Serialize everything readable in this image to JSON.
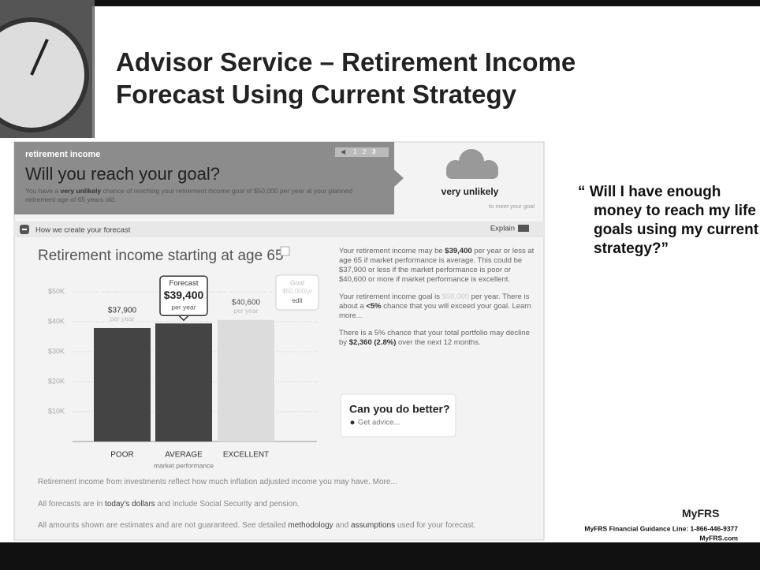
{
  "slide": {
    "title": [
      "Advisor Service – Retirement Income",
      "Forecast Using Current Strategy"
    ],
    "quote": "“ Will I have enough money to reach my life goals using my current strategy?”",
    "footer": {
      "logo": "MyFRS",
      "phone": "MyFRS Financial Guidance Line: 1-866-446-9377",
      "site": "MyFRS.com"
    }
  },
  "header": {
    "label": "retirement income",
    "pager": [
      "1",
      "2",
      "3"
    ],
    "heading": "Will you reach your goal?",
    "summary": [
      "You have a ",
      "very unlikely",
      " chance of reaching your retirement income goal of $50,000 per year at your planned retirement age of 65 years old."
    ],
    "status": "very unlikely",
    "status_note": "to meet your goal"
  },
  "section": {
    "toggle": "How we create your forecast",
    "explain": "Explain"
  },
  "chart_data": {
    "type": "bar",
    "title": "Retirement income starting at age 65",
    "categories": [
      "POOR",
      "AVERAGE",
      "EXCELLENT"
    ],
    "x_label": "market performance",
    "values": [
      37900,
      39400,
      40600
    ],
    "value_labels": [
      "$37,900",
      "$39,400",
      "$40,600"
    ],
    "value_notes": [
      "per year",
      "per year",
      "per year"
    ],
    "highlight_label": "Forecast",
    "colors": [
      "#444444",
      "#444444",
      "#dcdcdc"
    ],
    "goal": {
      "label": "Goal",
      "value_label": "$50,000/yr",
      "action": "edit"
    },
    "ylim": [
      0,
      50000
    ],
    "yticks": [
      {
        "value": 10000,
        "label": "$10K"
      },
      {
        "value": 20000,
        "label": "$20K"
      },
      {
        "value": 30000,
        "label": "$30K"
      },
      {
        "value": 40000,
        "label": "$40K"
      },
      {
        "value": 50000,
        "label": "$50K"
      }
    ],
    "grid": true
  },
  "details": {
    "p1": [
      "Your retirement income may be ",
      "$39,400",
      " per year or less at age 65 if market performance is average. This could be $37,900 or less if the market performance is poor or $40,600 or more if market performance is excellent."
    ],
    "p2": [
      "Your retirement income goal is ",
      "$50,000",
      " per year. There is about a ",
      "<5%",
      " chance that you will exceed your goal. Learn more..."
    ],
    "p3": [
      "There is a 5% chance that your total portfolio may decline by ",
      "$2,360 (2.8%)",
      " over the next 12 months."
    ]
  },
  "advice": {
    "title": "Can you do better?",
    "link": "Get advice..."
  },
  "notes": [
    [
      "Retirement income from investments reflect how much inflation adjusted income you may have. More..."
    ],
    [
      "All forecasts are in ",
      "today's dollars",
      " and include Social Security and pension."
    ],
    [
      "All amounts shown are estimates and are not guaranteed. See detailed ",
      "methodology",
      " and ",
      "assumptions",
      " used for your forecast."
    ]
  ]
}
